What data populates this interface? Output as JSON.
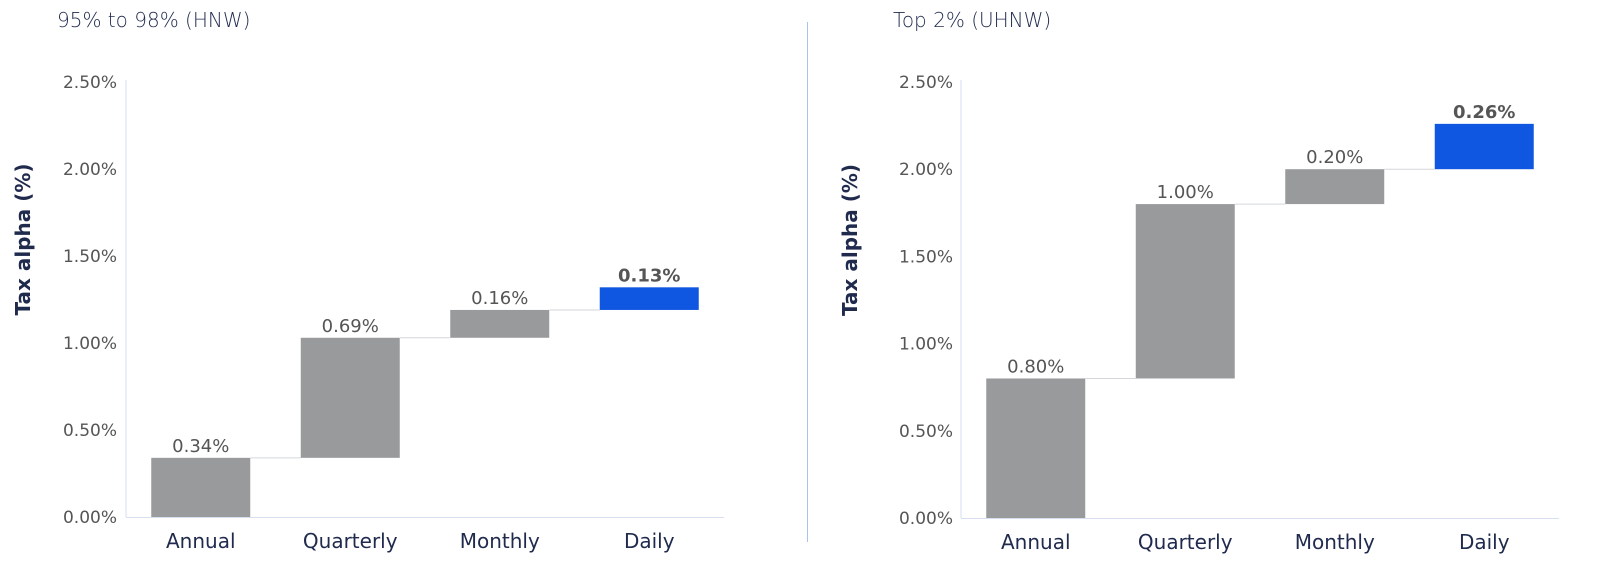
{
  "colors": {
    "increment_bar": "#999a9c",
    "highlight_bar": "#0f56e0",
    "axis_text": "#555555",
    "ylabel_text": "#1f2a4d",
    "category_text": "#1f2a4d",
    "divider": "#a9c2ee"
  },
  "chart_data": [
    {
      "type": "bar",
      "subtype": "waterfall",
      "title": "95% to 98% (HNW)",
      "ylabel": "Tax alpha (%)",
      "xlabel": "",
      "categories": [
        "Annual",
        "Quarterly",
        "Monthly",
        "Daily"
      ],
      "values": [
        0.34,
        0.69,
        0.16,
        0.13
      ],
      "value_labels": [
        "0.34%",
        "0.69%",
        "0.16%",
        "0.13%"
      ],
      "highlight": [
        false,
        false,
        false,
        true
      ],
      "ylim": [
        0,
        2.5
      ],
      "yticks": [
        0,
        0.5,
        1.0,
        1.5,
        2.0,
        2.5
      ],
      "ytick_labels": [
        "0.00%",
        "0.50%",
        "1.00%",
        "1.50%",
        "2.00%",
        "2.50%"
      ],
      "grid": false,
      "legend": "none"
    },
    {
      "type": "bar",
      "subtype": "waterfall",
      "title": "Top 2% (UHNW)",
      "ylabel": "Tax alpha (%)",
      "xlabel": "",
      "categories": [
        "Annual",
        "Quarterly",
        "Monthly",
        "Daily"
      ],
      "values": [
        0.8,
        1.0,
        0.2,
        0.26
      ],
      "value_labels": [
        "0.80%",
        "1.00%",
        "0.20%",
        "0.26%"
      ],
      "highlight": [
        false,
        false,
        false,
        true
      ],
      "ylim": [
        0,
        2.5
      ],
      "yticks": [
        0,
        0.5,
        1.0,
        1.5,
        2.0,
        2.5
      ],
      "ytick_labels": [
        "0.00%",
        "0.50%",
        "1.00%",
        "1.50%",
        "2.00%",
        "2.50%"
      ],
      "grid": false,
      "legend": "none"
    }
  ]
}
